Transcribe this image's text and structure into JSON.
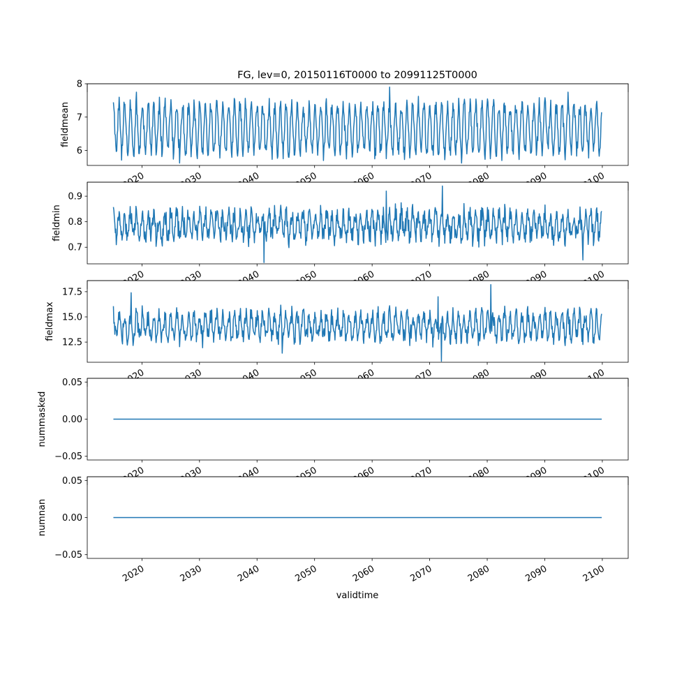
{
  "figure": {
    "title": "FG, lev=0, 20150116T0000 to 20991125T0000",
    "xlabel": "validtime"
  },
  "colors": {
    "line": "#1f77b4",
    "axes": "#000000",
    "background": "#ffffff"
  },
  "x_axis": {
    "type": "date",
    "range": [
      "2010-07-01",
      "2104-07-01"
    ],
    "ticks": [
      "2020",
      "2030",
      "2040",
      "2050",
      "2060",
      "2070",
      "2080",
      "2090",
      "2100"
    ],
    "tick_label_rotation": "30 degrees, right-aligned",
    "tick_labels_partially_hidden_on_upper_panels": true
  },
  "chart_data": [
    {
      "type": "line",
      "ylabel": "fieldmean",
      "x_start": "2015-01-16",
      "x_end": "2099-11-25",
      "ylim": [
        5.55,
        8.0
      ],
      "yticks": [
        6,
        7,
        8
      ],
      "ytick_labels": [
        "6",
        "7",
        "8"
      ],
      "values_note": "monthly values, strong seasonal cycle between ~5.8 and ~7.6; max 7.9 near 2063, min ~5.6",
      "seasonal": {
        "low": 5.95,
        "high": 7.35,
        "noise": 0.22
      },
      "extremes": [
        {
          "date": "2063-01-15",
          "value": 7.9
        },
        {
          "date": "2019-01-15",
          "value": 7.75
        },
        {
          "date": "2094-01-15",
          "value": 7.75
        },
        {
          "date": "2075-07-15",
          "value": 5.62
        },
        {
          "date": "2026-07-15",
          "value": 5.62
        }
      ]
    },
    {
      "type": "line",
      "ylabel": "fieldmin",
      "x_start": "2015-01-16",
      "x_end": "2099-11-25",
      "ylim": [
        0.635,
        0.955
      ],
      "yticks": [
        0.7,
        0.8,
        0.9
      ],
      "ytick_labels": [
        "0.7",
        "0.8",
        "0.9"
      ],
      "values_note": "noisy monthly values mostly between 0.70 and 0.86; max ~0.94 near 2072, min ~0.64 near 2041",
      "seasonal": {
        "low": 0.74,
        "high": 0.83,
        "noise": 0.035
      },
      "extremes": [
        {
          "date": "2072-03-15",
          "value": 0.94
        },
        {
          "date": "2041-03-15",
          "value": 0.64
        },
        {
          "date": "2096-08-15",
          "value": 0.65
        },
        {
          "date": "2062-06-15",
          "value": 0.92
        }
      ]
    },
    {
      "type": "line",
      "ylabel": "fieldmax",
      "x_start": "2015-01-16",
      "x_end": "2099-11-25",
      "ylim": [
        10.5,
        18.6
      ],
      "yticks": [
        12.5,
        15.0,
        17.5
      ],
      "ytick_labels": [
        "12.5",
        "15.0",
        "17.5"
      ],
      "values_note": "noisy monthly values mostly between 12 and 16; max ~18.2 near 2080, min ~10.6 near 2072",
      "seasonal": {
        "low": 12.9,
        "high": 15.2,
        "noise": 0.75
      },
      "extremes": [
        {
          "date": "2080-08-15",
          "value": 18.2
        },
        {
          "date": "2018-02-15",
          "value": 17.4
        },
        {
          "date": "2071-06-15",
          "value": 17.0
        },
        {
          "date": "2072-01-15",
          "value": 10.6
        },
        {
          "date": "2044-05-15",
          "value": 11.4
        }
      ]
    },
    {
      "type": "line",
      "ylabel": "nummasked",
      "x_start": "2015-01-16",
      "x_end": "2099-11-25",
      "ylim": [
        -0.055,
        0.055
      ],
      "yticks": [
        -0.05,
        0.0,
        0.05
      ],
      "ytick_labels": [
        "−0.05",
        "0.00",
        "0.05"
      ],
      "constant_value": 0
    },
    {
      "type": "line",
      "ylabel": "numnan",
      "x_start": "2015-01-16",
      "x_end": "2099-11-25",
      "ylim": [
        -0.055,
        0.055
      ],
      "yticks": [
        -0.05,
        0.0,
        0.05
      ],
      "ytick_labels": [
        "−0.05",
        "0.00",
        "0.05"
      ],
      "constant_value": 0
    }
  ]
}
